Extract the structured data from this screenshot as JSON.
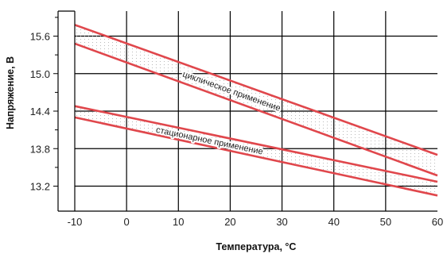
{
  "chart_data": {
    "type": "line",
    "title": "",
    "xlabel": "Температура, °C",
    "ylabel": "Напряжение, В",
    "xlim": [
      -10,
      60
    ],
    "ylim": [
      12.8,
      16.0
    ],
    "x_ticks": [
      "-10",
      "0",
      "10",
      "20",
      "30",
      "40",
      "50",
      "60"
    ],
    "y_ticks": [
      "13.2",
      "13.8",
      "14.4",
      "15.0",
      "15.6"
    ],
    "grid": true,
    "line_color": "#e0474c",
    "dot_color": "#a9a9a9",
    "bands": [
      {
        "label": "циклическое применение",
        "upper": {
          "x": [
            -10,
            60
          ],
          "y": [
            15.78,
            13.7
          ]
        },
        "lower": {
          "x": [
            -10,
            60
          ],
          "y": [
            15.48,
            13.37
          ]
        }
      },
      {
        "label": "стационарное применение",
        "upper": {
          "x": [
            -10,
            60
          ],
          "y": [
            14.48,
            13.27
          ]
        },
        "lower": {
          "x": [
            -10,
            60
          ],
          "y": [
            14.3,
            13.05
          ]
        }
      }
    ]
  }
}
